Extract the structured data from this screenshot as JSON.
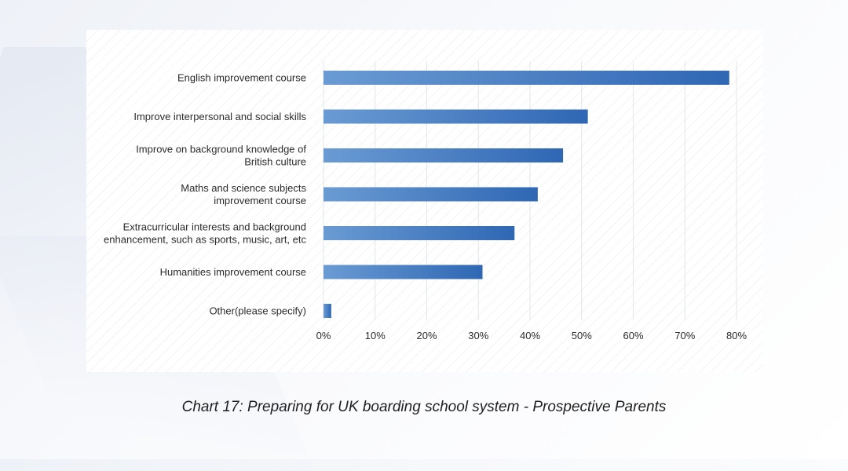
{
  "chart_data": {
    "type": "bar",
    "orientation": "horizontal",
    "categories": [
      [
        "English improvement course"
      ],
      [
        "Improve interpersonal and social skills"
      ],
      [
        "Improve on background knowledge of",
        "British culture"
      ],
      [
        "Maths and science subjects",
        "improvement course"
      ],
      [
        "Extracurricular interests and background",
        "enhancement, such as sports, music, art, etc"
      ],
      [
        "Humanities improvement course"
      ],
      [
        "Other(please specify)"
      ]
    ],
    "values": [
      78.6,
      51.2,
      46.4,
      41.5,
      37.0,
      30.8,
      1.5
    ],
    "x_ticks": [
      "0%",
      "10%",
      "20%",
      "30%",
      "40%",
      "50%",
      "60%",
      "70%",
      "80%"
    ],
    "xlim": [
      0,
      80
    ],
    "grid": "vertical lines",
    "bar_color_start": "#6a9bd3",
    "bar_color_end": "#2f67b4",
    "title": "Chart 17: Preparing for UK boarding school system - Prospective Parents"
  }
}
